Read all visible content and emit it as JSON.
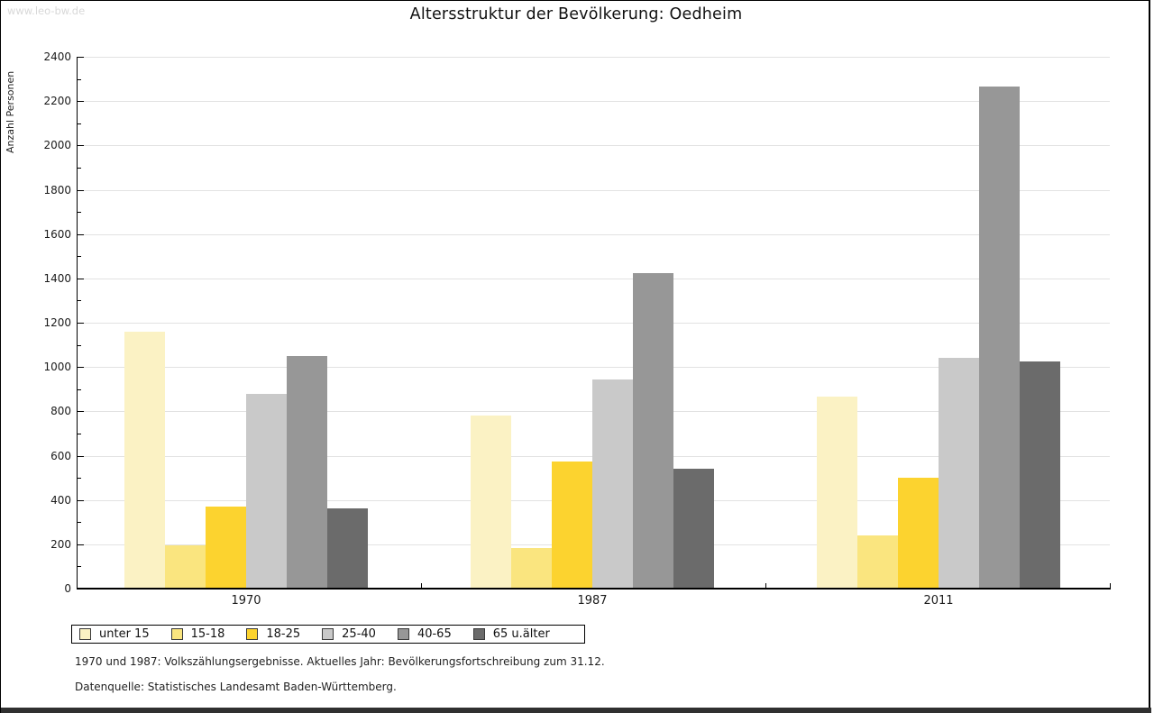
{
  "watermark": "www.leo-bw.de",
  "title": "Altersstruktur der Bevölkerung: Oedheim",
  "footer": {
    "line1": "1970 und 1987: Volkszählungsergebnisse. Aktuelles Jahr: Bevölkerungsfortschreibung zum 31.12.",
    "line2": "Datenquelle: Statistisches Landesamt Baden-Württemberg."
  },
  "colors": {
    "grid": "#E2E2E2",
    "axis": "#000000",
    "watermark": "#D8D8D8",
    "bottom_bar": "#303030"
  },
  "chart_data": {
    "type": "bar",
    "title": "Altersstruktur der Bevölkerung: Oedheim",
    "ylabel": "Anzahl Personen",
    "xlabel": "",
    "categories": [
      "1970",
      "1987",
      "2011"
    ],
    "series": [
      {
        "name": "unter 15",
        "color": "#FBF2C4",
        "values": [
          1160,
          780,
          865
        ]
      },
      {
        "name": "15-18",
        "color": "#FAE57F",
        "values": [
          195,
          185,
          240
        ]
      },
      {
        "name": "18-25",
        "color": "#FCD32F",
        "values": [
          370,
          575,
          500
        ]
      },
      {
        "name": "25-40",
        "color": "#C9C9C9",
        "values": [
          880,
          945,
          1040
        ]
      },
      {
        "name": "40-65",
        "color": "#979797",
        "values": [
          1050,
          1425,
          2265
        ]
      },
      {
        "name": "65 u.älter",
        "color": "#6B6B6B",
        "values": [
          360,
          540,
          1025
        ]
      }
    ],
    "ylim": [
      0,
      2400
    ],
    "y_major_step": 200,
    "y_minor_step": 100,
    "grid": "horizontal",
    "legend_position": "bottom-left"
  }
}
